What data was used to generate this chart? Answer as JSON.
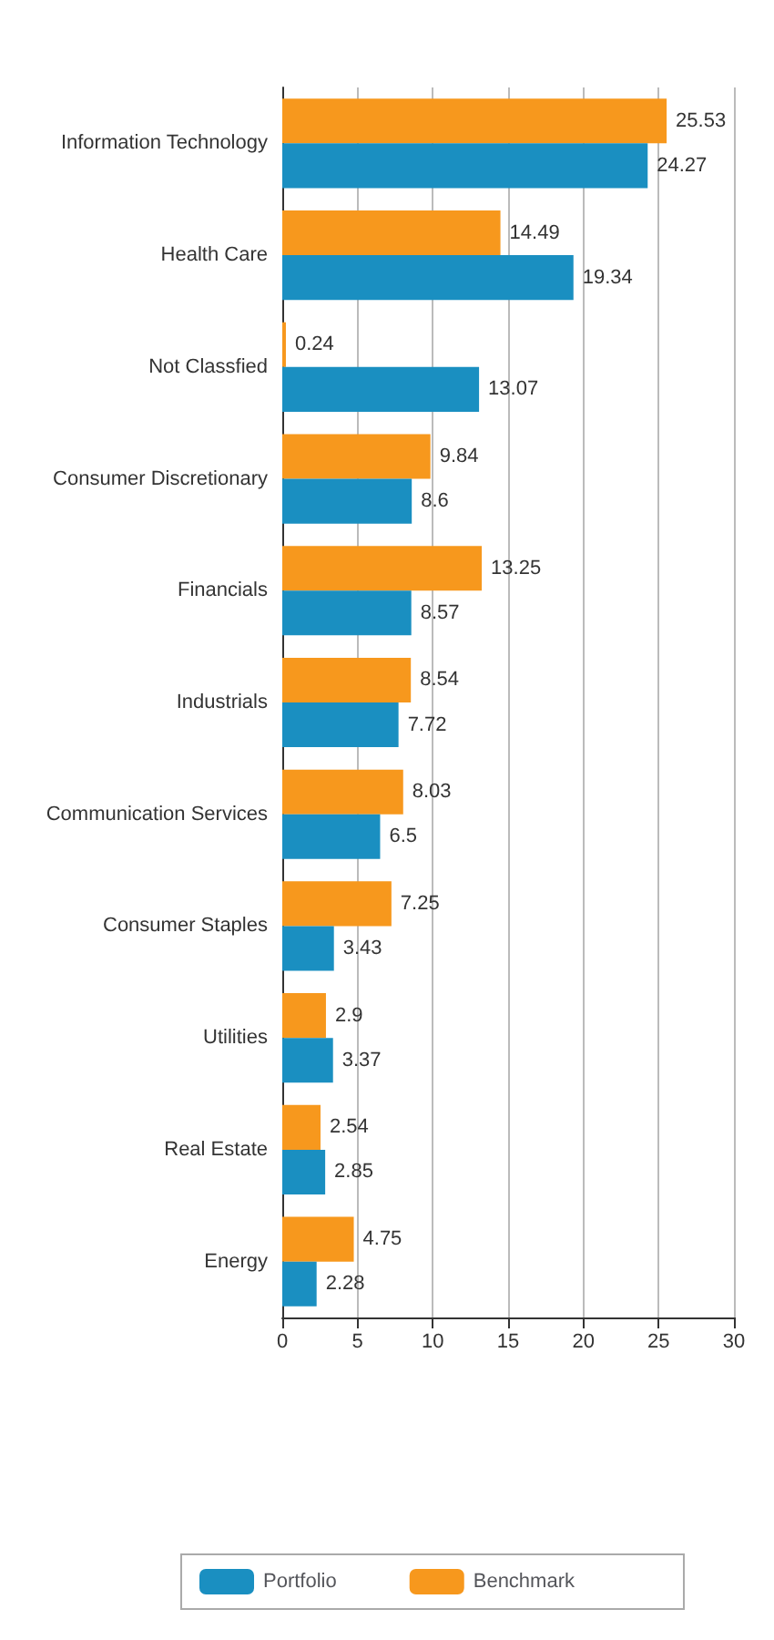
{
  "chart_data": {
    "type": "bar",
    "orientation": "horizontal",
    "categories": [
      "Information Technology",
      "Health Care",
      "Not Classfied",
      "Consumer Discretionary",
      "Financials",
      "Industrials",
      "Communication Services",
      "Consumer Staples",
      "Utilities",
      "Real Estate",
      "Energy"
    ],
    "series": [
      {
        "name": "Portfolio",
        "color": "#1a8fc1",
        "values": [
          24.27,
          19.34,
          13.07,
          8.6,
          8.57,
          7.72,
          6.5,
          3.43,
          3.37,
          2.85,
          2.28
        ]
      },
      {
        "name": "Benchmark",
        "color": "#f7981d",
        "values": [
          25.53,
          14.49,
          0.24,
          9.84,
          13.25,
          8.54,
          8.03,
          7.25,
          2.9,
          2.54,
          4.75
        ]
      }
    ],
    "xlim": [
      0,
      30
    ],
    "xticks": [
      0,
      5,
      10,
      15,
      20,
      25,
      30
    ],
    "grid": "x",
    "legend": "bottom",
    "data_labels": true
  }
}
